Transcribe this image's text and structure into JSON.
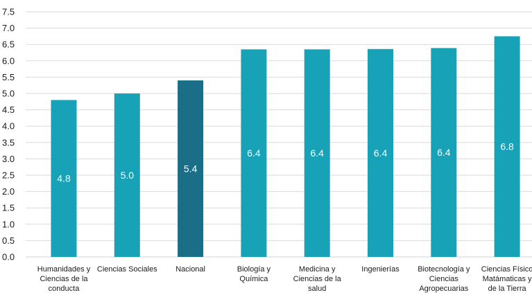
{
  "chart_data": {
    "type": "bar",
    "categories": [
      "Humanidades y Ciencias de la conducta",
      "Ciencias Sociales",
      "Nacional",
      "Biología y Química",
      "Medicina y Ciencias de la salud",
      "Ingenierías",
      "Biotecnología y Ciencias Agropecuarias",
      "Ciencias Físico Matámaticas y de la Tierra"
    ],
    "category_lines": [
      [
        "Humanidades y",
        "Ciencias de la",
        "conducta"
      ],
      [
        "Ciencias Sociales"
      ],
      [
        "Nacional"
      ],
      [
        "Biología y",
        "Química"
      ],
      [
        "Medicina y",
        "Ciencias de la",
        "salud"
      ],
      [
        "Ingenierías"
      ],
      [
        "Biotecnología y",
        "Ciencias",
        "Agropecuarias"
      ],
      [
        "Ciencias Físico",
        "Matámaticas y",
        "de la Tierra"
      ]
    ],
    "values": [
      4.8,
      5.0,
      5.4,
      6.35,
      6.35,
      6.36,
      6.39,
      6.75
    ],
    "value_labels": [
      "4.8",
      "5.0",
      "5.4",
      "6.4",
      "6.4",
      "6.4",
      "6.4",
      "6.8"
    ],
    "highlight_category": "Nacional",
    "colors": {
      "bar": "#17a2b8",
      "highlight": "#1a6e87",
      "label": "#ffffff"
    },
    "ylim": [
      0,
      7.5
    ],
    "yticks": [
      "0.0",
      "0.5",
      "1.0",
      "1.5",
      "2.0",
      "2.5",
      "3.0",
      "3.5",
      "4.0",
      "4.5",
      "5.0",
      "5.5",
      "6.0",
      "6.5",
      "7.0",
      "7.5"
    ],
    "grid": true,
    "title": "",
    "xlabel": "",
    "ylabel": ""
  }
}
